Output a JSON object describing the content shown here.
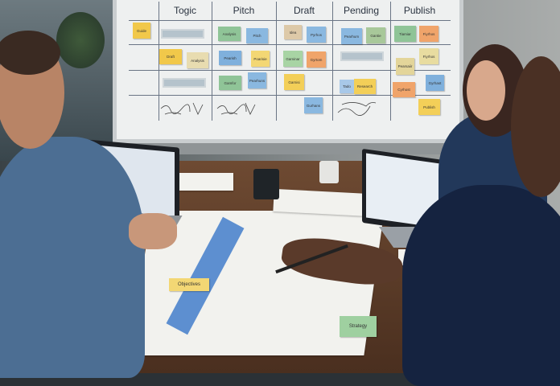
{
  "whiteboard": {
    "columns": [
      "Togic",
      "Pitch",
      "Draft",
      "Pending",
      "Publish"
    ],
    "notes": [
      {
        "label": "Guide",
        "color": "#f1c84a"
      },
      {
        "label": "Analysis",
        "color": "#8fc497"
      },
      {
        "label": "Pitch",
        "color": "#8ab8e0"
      },
      {
        "label": "Idea",
        "color": "#ddc9a8"
      },
      {
        "label": "Pyrhos",
        "color": "#8ab8e0"
      },
      {
        "label": "Pearhum",
        "color": "#8ab8e0"
      },
      {
        "label": "Gantie",
        "color": "#a8c89a"
      },
      {
        "label": "Tiamiar",
        "color": "#8fc497"
      },
      {
        "label": "Fiyrhos",
        "color": "#f0a46a"
      },
      {
        "label": "Draft",
        "color": "#f1c84a"
      },
      {
        "label": "Analysis",
        "color": "#e8dcb0"
      },
      {
        "label": "Pearish",
        "color": "#7fb0dc"
      },
      {
        "label": "Poarisie",
        "color": "#f3d774"
      },
      {
        "label": "Gaminar",
        "color": "#a8d4a4"
      },
      {
        "label": "Gyrtom",
        "color": "#f0a46a"
      },
      {
        "label": "Pearsaiir",
        "color": "#e3d59a"
      },
      {
        "label": "Fiyrhos",
        "color": "#e8dca0"
      },
      {
        "label": "Gamfor",
        "color": "#8fc497"
      },
      {
        "label": "Pearhuns",
        "color": "#8ab8e0"
      },
      {
        "label": "Garnisi",
        "color": "#f3cf58"
      },
      {
        "label": "Tado",
        "color": "#a8c8e8"
      },
      {
        "label": "Research",
        "color": "#f3cf58"
      },
      {
        "label": "Cyrhost",
        "color": "#f0a46a"
      },
      {
        "label": "Gyrhast",
        "color": "#7fb0dc"
      },
      {
        "label": "Gurhans",
        "color": "#8ab8e0"
      },
      {
        "label": "Publish",
        "color": "#f3cf58"
      }
    ]
  },
  "table_notes": [
    {
      "label": "Objectives",
      "color": "#f3d774"
    },
    {
      "label": "Strategy",
      "color": "#9fd0a0"
    }
  ]
}
